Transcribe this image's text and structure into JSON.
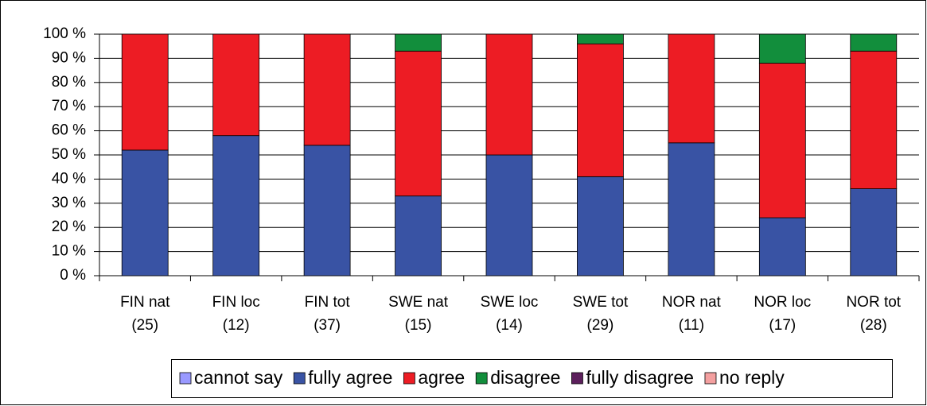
{
  "chart_data": {
    "type": "stacked_bar",
    "categories": [
      [
        "FIN nat",
        "(25)"
      ],
      [
        "FIN loc",
        "(12)"
      ],
      [
        "FIN tot",
        "(37)"
      ],
      [
        "SWE nat",
        "(15)"
      ],
      [
        "SWE loc",
        "(14)"
      ],
      [
        "SWE tot",
        "(29)"
      ],
      [
        "NOR nat",
        "(11)"
      ],
      [
        "NOR loc",
        "(17)"
      ],
      [
        "NOR tot",
        "(28)"
      ]
    ],
    "series": [
      {
        "name": "cannot say",
        "color": "#9999ff",
        "values": [
          0,
          0,
          0,
          0,
          0,
          0,
          0,
          0,
          0
        ]
      },
      {
        "name": "fully agree",
        "color": "#3953a4",
        "values": [
          52,
          58,
          54,
          33,
          50,
          41,
          55,
          24,
          36
        ]
      },
      {
        "name": "agree",
        "color": "#ed1c24",
        "values": [
          48,
          42,
          46,
          60,
          50,
          55,
          45,
          64,
          57
        ]
      },
      {
        "name": "disagree",
        "color": "#128e3c",
        "values": [
          0,
          0,
          0,
          7,
          0,
          4,
          0,
          12,
          7
        ]
      },
      {
        "name": "fully disagree",
        "color": "#5c1f5c",
        "values": [
          0,
          0,
          0,
          0,
          0,
          0,
          0,
          0,
          0
        ]
      },
      {
        "name": "no reply",
        "color": "#f4a0a0",
        "values": [
          0,
          0,
          0,
          0,
          0,
          0,
          0,
          0,
          0
        ]
      }
    ],
    "ylim": [
      0,
      100
    ],
    "yticks": [
      {
        "value": 0,
        "label": "0 %"
      },
      {
        "value": 10,
        "label": "10 %"
      },
      {
        "value": 20,
        "label": "20 %"
      },
      {
        "value": 30,
        "label": "30 %"
      },
      {
        "value": 40,
        "label": "40 %"
      },
      {
        "value": 50,
        "label": "50 %"
      },
      {
        "value": 60,
        "label": "60 %"
      },
      {
        "value": 70,
        "label": "70 %"
      },
      {
        "value": 80,
        "label": "80 %"
      },
      {
        "value": 90,
        "label": "90 %"
      },
      {
        "value": 100,
        "label": "100 %"
      }
    ],
    "grid": true,
    "legend": "bottom"
  }
}
